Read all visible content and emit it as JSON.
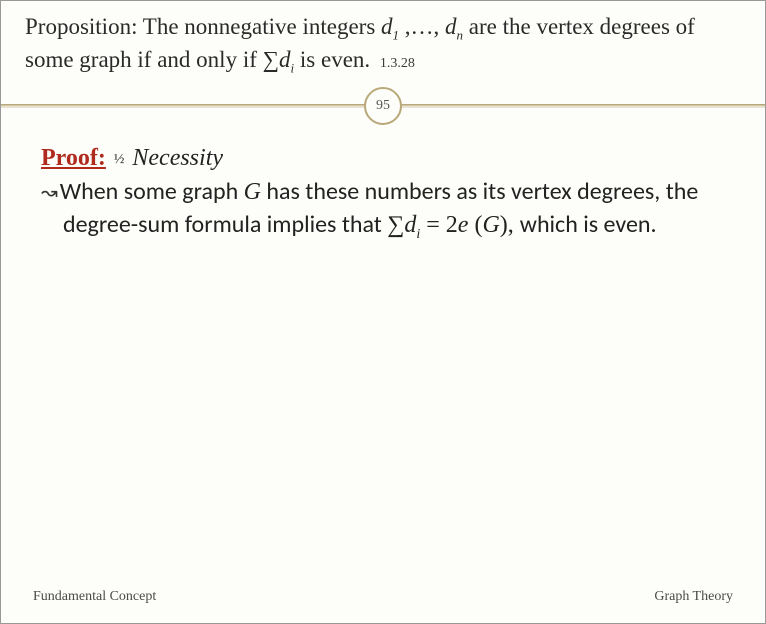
{
  "title": {
    "text_before_d1": "Proposition: The nonnegative integers ",
    "d1": "d",
    "d1_sub": "1",
    "mid": " ,…, ",
    "dn": "d",
    "dn_sub": "n",
    "text_after_dn": " are the vertex degrees of some graph if and only if ",
    "sigma": "∑",
    "di": "d",
    "di_sub": "i",
    "tail": " is even.",
    "ref": "1.3.28"
  },
  "slide_number": "95",
  "proof": {
    "label": "Proof:",
    "half": "½",
    "necessity": "Necessity"
  },
  "body": {
    "bullet": "↝",
    "t1": "When ",
    "t2": "some graph ",
    "G": "G",
    "t3": " has these numbers as its vertex degrees, the degree-sum formula implies that ",
    "sigma": "∑",
    "di": "d",
    "di_sub": "i",
    "eq": " = 2",
    "e": "e",
    "paren_open": " (",
    "G2": "G",
    "paren_close": "), ",
    "t4": "which is even."
  },
  "footer": {
    "left": "Fundamental Concept",
    "right": "Graph Theory"
  },
  "colors": {
    "accent": "#b9a97a",
    "proof_red": "#b02a1e",
    "bg": "#fdfdf9"
  }
}
